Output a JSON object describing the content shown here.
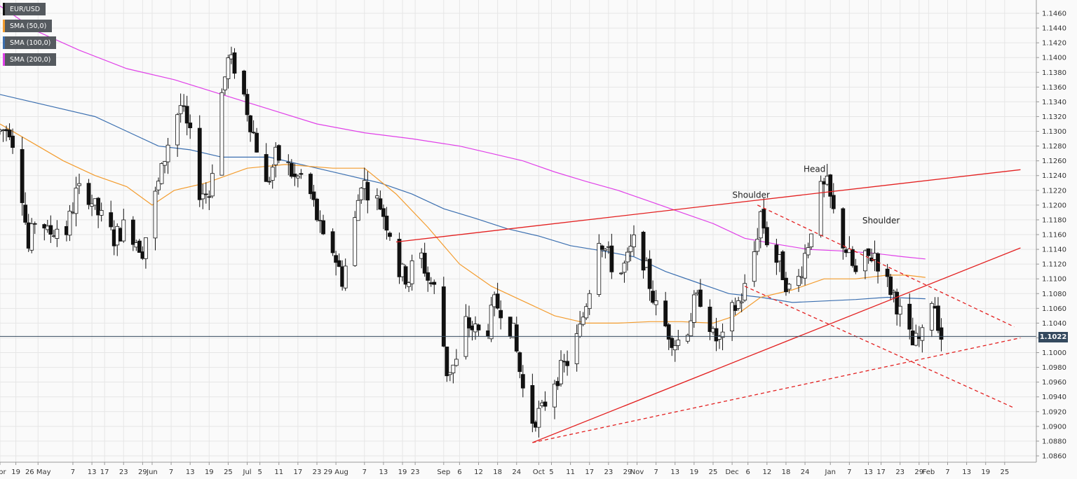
{
  "chart_data": {
    "type": "candlestick",
    "symbol": "EUR/USD",
    "last_price": "1.1022",
    "y_range": [
      1.085,
      1.1465
    ],
    "y_ticks": [
      "1.1460",
      "1.1440",
      "1.1420",
      "1.1400",
      "1.1380",
      "1.1360",
      "1.1340",
      "1.1320",
      "1.1300",
      "1.1280",
      "1.1260",
      "1.1240",
      "1.1220",
      "1.1200",
      "1.1180",
      "1.1160",
      "1.1140",
      "1.1120",
      "1.1100",
      "1.1080",
      "1.1060",
      "1.1040",
      "1.1020",
      "1.1000",
      "1.0980",
      "1.0960",
      "1.0940",
      "1.0920",
      "1.0900",
      "1.0880",
      "1.0860"
    ],
    "x_ticks": [
      {
        "label": "Apr",
        "day": 0
      },
      {
        "label": "19",
        "day": 5
      },
      {
        "label": "26 May",
        "day": 12
      },
      {
        "label": "7",
        "day": 23
      },
      {
        "label": "13",
        "day": 29
      },
      {
        "label": "17",
        "day": 33
      },
      {
        "label": "23",
        "day": 39
      },
      {
        "label": "29",
        "day": 45
      },
      {
        "label": "Jun",
        "day": 48
      },
      {
        "label": "7",
        "day": 54
      },
      {
        "label": "13",
        "day": 60
      },
      {
        "label": "19",
        "day": 66
      },
      {
        "label": "25",
        "day": 72
      },
      {
        "label": "Jul",
        "day": 78
      },
      {
        "label": "5",
        "day": 82
      },
      {
        "label": "11",
        "day": 88
      },
      {
        "label": "17",
        "day": 94
      },
      {
        "label": "23",
        "day": 100
      },
      {
        "label": "29 Aug",
        "day": 106
      },
      {
        "label": "7",
        "day": 115
      },
      {
        "label": "13",
        "day": 121
      },
      {
        "label": "19",
        "day": 127
      },
      {
        "label": "23",
        "day": 131
      },
      {
        "label": "Sep",
        "day": 140
      },
      {
        "label": "6",
        "day": 145
      },
      {
        "label": "12",
        "day": 151
      },
      {
        "label": "18",
        "day": 157
      },
      {
        "label": "24",
        "day": 163
      },
      {
        "label": "Oct",
        "day": 170
      },
      {
        "label": "5",
        "day": 174
      },
      {
        "label": "11",
        "day": 180
      },
      {
        "label": "17",
        "day": 186
      },
      {
        "label": "23",
        "day": 192
      },
      {
        "label": "29",
        "day": 198
      },
      {
        "label": "Nov",
        "day": 201
      },
      {
        "label": "7",
        "day": 207
      },
      {
        "label": "13",
        "day": 213
      },
      {
        "label": "19",
        "day": 219
      },
      {
        "label": "25",
        "day": 225
      },
      {
        "label": "Dec",
        "day": 231
      },
      {
        "label": "6",
        "day": 236
      },
      {
        "label": "12",
        "day": 242
      },
      {
        "label": "18",
        "day": 248
      },
      {
        "label": "24",
        "day": 254
      },
      {
        "label": "Jan",
        "day": 262
      },
      {
        "label": "7",
        "day": 268
      },
      {
        "label": "13",
        "day": 274
      },
      {
        "label": "17",
        "day": 278
      },
      {
        "label": "23",
        "day": 284
      },
      {
        "label": "29",
        "day": 290
      },
      {
        "label": "Feb",
        "day": 293
      },
      {
        "label": "7",
        "day": 299
      },
      {
        "label": "13",
        "day": 305
      },
      {
        "label": "19",
        "day": 311
      },
      {
        "label": "25",
        "day": 317
      }
    ],
    "price_anchors": [
      [
        0,
        1.13
      ],
      [
        3,
        1.1305
      ],
      [
        6,
        1.1255
      ],
      [
        9,
        1.114
      ],
      [
        12,
        1.12
      ],
      [
        15,
        1.116
      ],
      [
        18,
        1.117
      ],
      [
        21,
        1.1165
      ],
      [
        24,
        1.1215
      ],
      [
        27,
        1.1225
      ],
      [
        30,
        1.1195
      ],
      [
        33,
        1.1175
      ],
      [
        36,
        1.1155
      ],
      [
        39,
        1.117
      ],
      [
        42,
        1.116
      ],
      [
        45,
        1.114
      ],
      [
        48,
        1.1195
      ],
      [
        51,
        1.1245
      ],
      [
        54,
        1.1305
      ],
      [
        57,
        1.1335
      ],
      [
        60,
        1.129
      ],
      [
        63,
        1.122
      ],
      [
        66,
        1.1215
      ],
      [
        69,
        1.133
      ],
      [
        72,
        1.1395
      ],
      [
        75,
        1.1385
      ],
      [
        78,
        1.133
      ],
      [
        81,
        1.128
      ],
      [
        84,
        1.1225
      ],
      [
        87,
        1.1265
      ],
      [
        90,
        1.126
      ],
      [
        93,
        1.1235
      ],
      [
        96,
        1.124
      ],
      [
        99,
        1.12
      ],
      [
        102,
        1.115
      ],
      [
        105,
        1.114
      ],
      [
        108,
        1.11
      ],
      [
        111,
        1.115
      ],
      [
        114,
        1.1235
      ],
      [
        117,
        1.1215
      ],
      [
        120,
        1.12
      ],
      [
        123,
        1.1165
      ],
      [
        126,
        1.111
      ],
      [
        129,
        1.11
      ],
      [
        132,
        1.1145
      ],
      [
        135,
        1.11
      ],
      [
        138,
        1.108
      ],
      [
        141,
        1.0975
      ],
      [
        144,
        1.0985
      ],
      [
        147,
        1.104
      ],
      [
        150,
        1.103
      ],
      [
        153,
        1.102
      ],
      [
        156,
        1.1065
      ],
      [
        159,
        1.106
      ],
      [
        162,
        1.1025
      ],
      [
        165,
        1.095
      ],
      [
        168,
        1.091
      ],
      [
        171,
        1.092
      ],
      [
        174,
        1.096
      ],
      [
        177,
        1.0975
      ],
      [
        180,
        1.0995
      ],
      [
        183,
        1.103
      ],
      [
        186,
        1.109
      ],
      [
        189,
        1.116
      ],
      [
        192,
        1.113
      ],
      [
        195,
        1.11
      ],
      [
        198,
        1.1125
      ],
      [
        201,
        1.116
      ],
      [
        204,
        1.111
      ],
      [
        207,
        1.106
      ],
      [
        210,
        1.1035
      ],
      [
        213,
        1.1015
      ],
      [
        216,
        1.102
      ],
      [
        219,
        1.1065
      ],
      [
        222,
        1.108
      ],
      [
        225,
        1.102
      ],
      [
        228,
        1.1015
      ],
      [
        231,
        1.1055
      ],
      [
        234,
        1.1075
      ],
      [
        237,
        1.111
      ],
      [
        240,
        1.119
      ],
      [
        243,
        1.1135
      ],
      [
        246,
        1.112
      ],
      [
        249,
        1.1085
      ],
      [
        252,
        1.11
      ],
      [
        255,
        1.115
      ],
      [
        258,
        1.1215
      ],
      [
        261,
        1.1225
      ],
      [
        264,
        1.117
      ],
      [
        267,
        1.114
      ],
      [
        270,
        1.1105
      ],
      [
        273,
        1.1125
      ],
      [
        276,
        1.1135
      ],
      [
        279,
        1.11
      ],
      [
        282,
        1.108
      ],
      [
        285,
        1.104
      ],
      [
        288,
        1.101
      ],
      [
        291,
        1.102
      ],
      [
        293,
        1.1085
      ],
      [
        295,
        1.1065
      ],
      [
        297,
        1.1022
      ]
    ],
    "sma_50": [
      [
        0,
        1.131
      ],
      [
        10,
        1.1285
      ],
      [
        20,
        1.126
      ],
      [
        30,
        1.124
      ],
      [
        40,
        1.1225
      ],
      [
        48,
        1.12
      ],
      [
        55,
        1.122
      ],
      [
        65,
        1.123
      ],
      [
        78,
        1.125
      ],
      [
        90,
        1.1255
      ],
      [
        105,
        1.125
      ],
      [
        115,
        1.125
      ],
      [
        125,
        1.1215
      ],
      [
        135,
        1.117
      ],
      [
        145,
        1.112
      ],
      [
        155,
        1.109
      ],
      [
        165,
        1.107
      ],
      [
        175,
        1.105
      ],
      [
        185,
        1.104
      ],
      [
        195,
        1.104
      ],
      [
        205,
        1.1042
      ],
      [
        215,
        1.1042
      ],
      [
        225,
        1.104
      ],
      [
        232,
        1.105
      ],
      [
        240,
        1.1075
      ],
      [
        250,
        1.1085
      ],
      [
        260,
        1.11
      ],
      [
        270,
        1.11
      ],
      [
        280,
        1.1105
      ],
      [
        286,
        1.1105
      ],
      [
        292,
        1.1102
      ]
    ],
    "sma_100": [
      [
        0,
        1.135
      ],
      [
        15,
        1.1335
      ],
      [
        30,
        1.132
      ],
      [
        40,
        1.13
      ],
      [
        50,
        1.128
      ],
      [
        60,
        1.1275
      ],
      [
        70,
        1.1265
      ],
      [
        85,
        1.1265
      ],
      [
        100,
        1.125
      ],
      [
        110,
        1.124
      ],
      [
        120,
        1.123
      ],
      [
        130,
        1.1215
      ],
      [
        140,
        1.1195
      ],
      [
        150,
        1.1182
      ],
      [
        160,
        1.1168
      ],
      [
        170,
        1.1158
      ],
      [
        180,
        1.1145
      ],
      [
        190,
        1.1138
      ],
      [
        200,
        1.113
      ],
      [
        210,
        1.111
      ],
      [
        220,
        1.1095
      ],
      [
        230,
        1.108
      ],
      [
        240,
        1.1075
      ],
      [
        250,
        1.1068
      ],
      [
        260,
        1.107
      ],
      [
        270,
        1.1072
      ],
      [
        280,
        1.1075
      ],
      [
        286,
        1.1074
      ],
      [
        292,
        1.1073
      ]
    ],
    "sma_200": [
      [
        0,
        1.147
      ],
      [
        12,
        1.1435
      ],
      [
        25,
        1.141
      ],
      [
        40,
        1.1385
      ],
      [
        55,
        1.137
      ],
      [
        70,
        1.135
      ],
      [
        85,
        1.133
      ],
      [
        100,
        1.131
      ],
      [
        115,
        1.1298
      ],
      [
        130,
        1.129
      ],
      [
        145,
        1.128
      ],
      [
        155,
        1.127
      ],
      [
        165,
        1.126
      ],
      [
        175,
        1.1245
      ],
      [
        185,
        1.1232
      ],
      [
        195,
        1.122
      ],
      [
        205,
        1.1205
      ],
      [
        215,
        1.119
      ],
      [
        225,
        1.1175
      ],
      [
        235,
        1.1155
      ],
      [
        245,
        1.1147
      ],
      [
        255,
        1.114
      ],
      [
        265,
        1.1138
      ],
      [
        275,
        1.1135
      ],
      [
        285,
        1.113
      ],
      [
        292,
        1.1127
      ]
    ],
    "trendlines": [
      {
        "style": "solid",
        "color": "#e32020",
        "from": [
          125,
          1.115
        ],
        "to": [
          322,
          1.1248
        ]
      },
      {
        "style": "solid",
        "color": "#e32020",
        "from": [
          168,
          1.0878
        ],
        "to": [
          322,
          1.1142
        ]
      },
      {
        "style": "dashed",
        "color": "#e32020",
        "from": [
          168,
          1.0878
        ],
        "to": [
          322,
          1.102
        ]
      },
      {
        "style": "dashed",
        "color": "#e32020",
        "from": [
          239,
          1.12
        ],
        "to": [
          320,
          1.1035
        ]
      },
      {
        "style": "dashed",
        "color": "#e32020",
        "from": [
          235,
          1.109
        ],
        "to": [
          320,
          1.0925
        ]
      }
    ],
    "annotations": [
      {
        "text": "Shoulder",
        "day": 237,
        "price": 1.121
      },
      {
        "text": "Head",
        "day": 257,
        "price": 1.1245
      },
      {
        "text": "Shoulder",
        "day": 278,
        "price": 1.1175
      }
    ],
    "legend": [
      {
        "label": "EUR/USD",
        "color": "#111111"
      },
      {
        "label": "SMA (50,0)",
        "color": "#f39c2e"
      },
      {
        "label": "SMA (100,0)",
        "color": "#3b6fb0"
      },
      {
        "label": "SMA (200,0)",
        "color": "#e040e8"
      }
    ],
    "grid": true
  }
}
